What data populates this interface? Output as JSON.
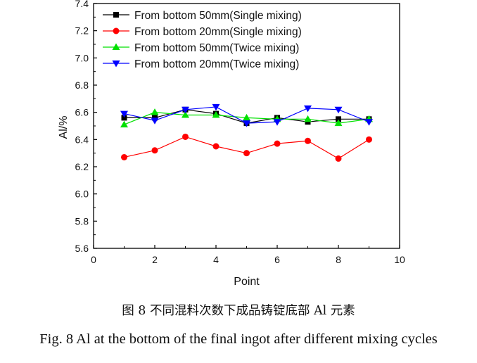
{
  "caption": {
    "cn": "图 8  不同混料次数下成品铸锭底部 Al 元素",
    "en": "Fig. 8 Al at the bottom of the final ingot after different mixing cycles"
  },
  "chart_data": {
    "type": "line",
    "title": "",
    "xlabel": "Point",
    "ylabel": "Al/%",
    "xlim": [
      0,
      10
    ],
    "ylim": [
      5.6,
      7.4
    ],
    "xticks": [
      0,
      2,
      4,
      6,
      8,
      10
    ],
    "yticks": [
      5.6,
      5.8,
      6.0,
      6.2,
      6.4,
      6.6,
      6.8,
      7.0,
      7.2,
      7.4
    ],
    "grid": false,
    "legend_position": "top-left",
    "x": [
      1,
      2,
      3,
      4,
      5,
      6,
      7,
      8,
      9
    ],
    "series": [
      {
        "name": "From bottom 50mm(Single mixing)",
        "color": "#000000",
        "marker": "square",
        "values": [
          6.56,
          6.56,
          6.62,
          6.59,
          6.52,
          6.56,
          6.53,
          6.55,
          6.55
        ]
      },
      {
        "name": "From bottom 20mm(Single mixing)",
        "color": "#ff0000",
        "marker": "circle",
        "values": [
          6.27,
          6.32,
          6.42,
          6.35,
          6.3,
          6.37,
          6.39,
          6.26,
          6.4
        ]
      },
      {
        "name": "From bottom 50mm(Twice mixing)",
        "color": "#00e000",
        "marker": "triangle-up",
        "values": [
          6.51,
          6.6,
          6.58,
          6.58,
          6.56,
          6.55,
          6.55,
          6.52,
          6.55
        ]
      },
      {
        "name": "From bottom 20mm(Twice mixing)",
        "color": "#0000ff",
        "marker": "triangle-down",
        "values": [
          6.59,
          6.54,
          6.62,
          6.64,
          6.52,
          6.53,
          6.63,
          6.62,
          6.53
        ]
      }
    ]
  }
}
